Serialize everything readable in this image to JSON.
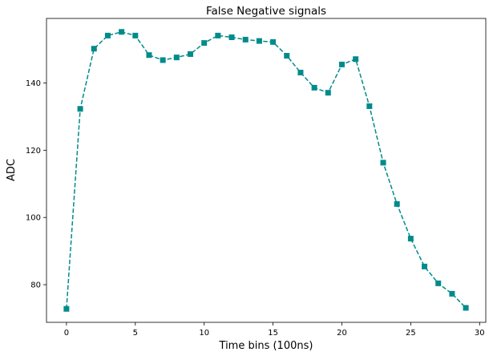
{
  "chart_data": {
    "type": "line",
    "title": "False Negative signals",
    "xlabel": "Time bins (100ns)",
    "ylabel": "ADC",
    "xlim": [
      -1.45,
      30.45
    ],
    "ylim": [
      68.8,
      159.2
    ],
    "xticks": [
      0,
      5,
      10,
      15,
      20,
      25,
      30
    ],
    "yticks": [
      80,
      100,
      120,
      140
    ],
    "grid": false,
    "legend": false,
    "series": [
      {
        "color": "#008b8b",
        "linestyle": "dashed",
        "marker": "square",
        "x": [
          0,
          1,
          2,
          3,
          4,
          5,
          6,
          7,
          8,
          9,
          10,
          11,
          12,
          13,
          14,
          15,
          16,
          17,
          18,
          19,
          20,
          21,
          22,
          23,
          24,
          25,
          26,
          27,
          28,
          29
        ],
        "y": [
          72.8,
          132.3,
          150.2,
          154.1,
          155.2,
          154.1,
          148.3,
          146.8,
          147.6,
          148.6,
          151.9,
          154.1,
          153.6,
          152.9,
          152.5,
          152.2,
          148.1,
          143.1,
          138.6,
          137.1,
          145.5,
          147.1,
          133.1,
          116.3,
          104.0,
          93.7,
          85.4,
          80.4,
          77.3,
          73.1
        ]
      }
    ]
  }
}
